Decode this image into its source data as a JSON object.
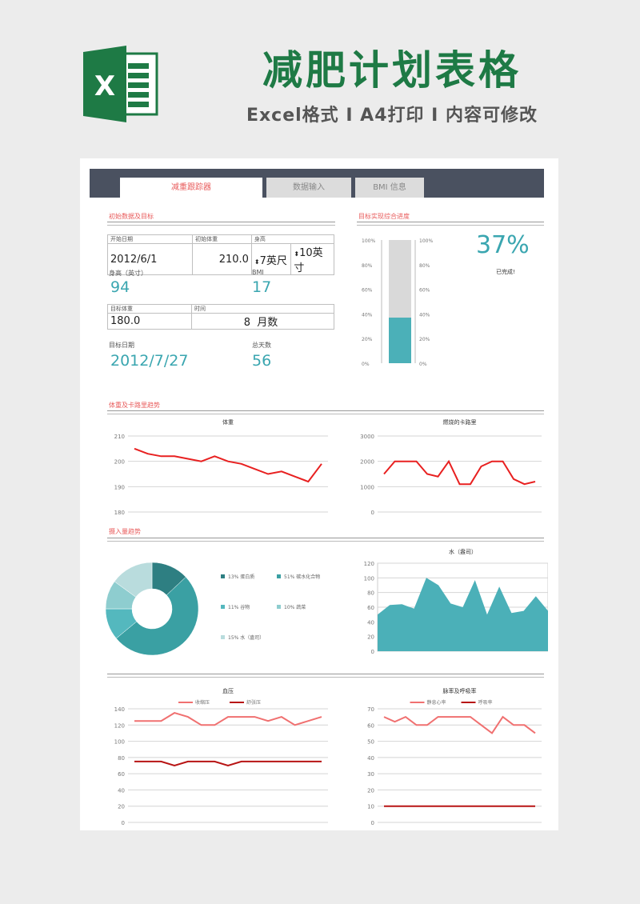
{
  "banner": {
    "title": "减肥计划表格",
    "subtitle": "Excel格式 I A4打印 I 内容可修改",
    "logo_letter": "X"
  },
  "tabs": [
    "减重跟踪器",
    "数据输入",
    "BMI 信息"
  ],
  "sections": {
    "initial": "初始数据及目标",
    "progress": "目标实现综合进度",
    "weight_trend": "体重及卡路里趋势",
    "intake_trend": "摄入量趋势"
  },
  "fields": {
    "start_date_label": "开始日期",
    "start_date": "2012/6/1",
    "start_weight_label": "初始体重",
    "start_weight": "210.0",
    "height_label": "身高",
    "height_feet": "7英尺",
    "height_inches": "10英寸",
    "height_in_label": "身高（英寸）",
    "height_in": "94",
    "bmi_label": "BMI",
    "bmi": "17",
    "target_weight_label": "目标体重",
    "target_weight": "180.0",
    "duration_label": "时间",
    "duration_value": "8",
    "duration_unit": "月数",
    "target_date_label": "目标日期",
    "target_date": "2012/7/27",
    "total_days_label": "总天数",
    "total_days": "56"
  },
  "progress": {
    "percent_text": "37%",
    "caption": "已完成!",
    "value": 0.37,
    "ticks": [
      "100%",
      "80%",
      "60%",
      "40%",
      "20%",
      "0%"
    ],
    "colors": {
      "fill": "#4bb0b8",
      "track": "#d9d9d9",
      "text": "#3aa6b0"
    }
  },
  "chart_data": [
    {
      "type": "line",
      "title": "体重",
      "ylim": [
        180,
        210
      ],
      "yticks": [
        180,
        190,
        200,
        210
      ],
      "series": [
        {
          "color": "#e82020",
          "values": [
            205,
            203,
            202,
            202,
            201,
            200,
            202,
            200,
            199,
            197,
            195,
            196,
            194,
            192,
            199
          ]
        }
      ]
    },
    {
      "type": "line",
      "title": "燃烧的卡路里",
      "ylim": [
        0,
        3000
      ],
      "yticks": [
        0,
        1000,
        2000,
        3000
      ],
      "series": [
        {
          "color": "#e82020",
          "values": [
            1500,
            2000,
            2000,
            2000,
            1500,
            1400,
            2000,
            1100,
            1100,
            1800,
            2000,
            2000,
            1300,
            1100,
            1200
          ]
        }
      ]
    },
    {
      "type": "pie",
      "donut": true,
      "slices": [
        {
          "label": "13% 蛋白质",
          "value": 13,
          "color": "#2e7f82"
        },
        {
          "label": "51% 碳水化合物",
          "value": 51,
          "color": "#3aa0a3"
        },
        {
          "label": "11% 谷物",
          "value": 11,
          "color": "#54b8be"
        },
        {
          "label": "10% 蔬菜",
          "value": 10,
          "color": "#8ecdcf"
        },
        {
          "label": "15% 水（盎司）",
          "value": 15,
          "color": "#b9dcdd"
        }
      ]
    },
    {
      "type": "area",
      "title": "水（盎司）",
      "ylim": [
        0,
        120
      ],
      "yticks": [
        0,
        20,
        40,
        60,
        80,
        100,
        120
      ],
      "series": [
        {
          "color": "#4bb0b8",
          "values": [
            50,
            63,
            64,
            58,
            100,
            90,
            65,
            60,
            97,
            50,
            88,
            52,
            55,
            75,
            55
          ]
        }
      ]
    },
    {
      "type": "line",
      "title": "血压",
      "ylim": [
        0,
        140
      ],
      "yticks": [
        0,
        20,
        40,
        60,
        80,
        100,
        120,
        140
      ],
      "series": [
        {
          "name": "收缩压",
          "color": "#f07070",
          "values": [
            125,
            125,
            125,
            135,
            130,
            120,
            120,
            130,
            130,
            130,
            125,
            130,
            120,
            125,
            130
          ]
        },
        {
          "name": "舒张压",
          "color": "#b81414",
          "values": [
            75,
            75,
            75,
            70,
            75,
            75,
            75,
            70,
            75,
            75,
            75,
            75,
            75,
            75,
            75
          ]
        }
      ]
    },
    {
      "type": "line",
      "title": "脉率及呼吸率",
      "ylim": [
        0,
        70
      ],
      "yticks": [
        0,
        10,
        20,
        30,
        40,
        50,
        60,
        70
      ],
      "series": [
        {
          "name": "静息心率",
          "color": "#f07070",
          "values": [
            65,
            62,
            65,
            60,
            60,
            65,
            65,
            65,
            65,
            60,
            55,
            65,
            60,
            60,
            55
          ]
        },
        {
          "name": "呼吸率",
          "color": "#b81414",
          "values": [
            10,
            10,
            10,
            10,
            10,
            10,
            10,
            10,
            10,
            10,
            10,
            10,
            10,
            10,
            10
          ]
        }
      ]
    }
  ]
}
